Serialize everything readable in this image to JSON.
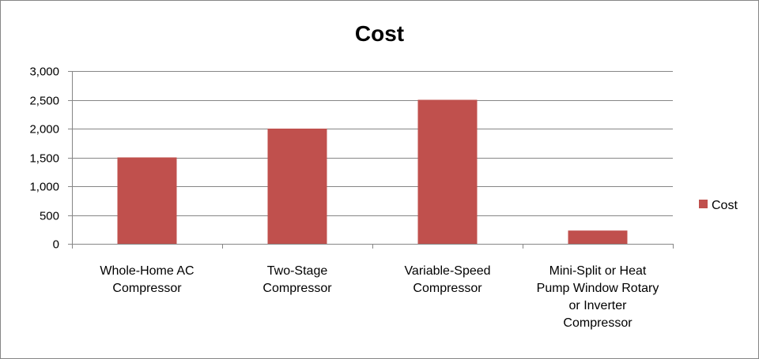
{
  "chart_data": {
    "type": "bar",
    "title": "Cost",
    "categories": [
      [
        "Whole-Home AC",
        "Compressor"
      ],
      [
        "Two-Stage",
        "Compressor"
      ],
      [
        "Variable-Speed",
        "Compressor"
      ],
      [
        "Mini-Split or Heat",
        "Pump Window Rotary",
        "or Inverter",
        "Compressor"
      ]
    ],
    "series": [
      {
        "name": "Cost",
        "values": [
          1500,
          2000,
          2500,
          230
        ]
      }
    ],
    "yticks": [
      "0",
      "500",
      "1,000",
      "1,500",
      "2,000",
      "2,500",
      "3,000"
    ],
    "ylim": [
      0,
      3000
    ],
    "grid": true,
    "legend_position": "right",
    "colors": {
      "bar": "#C0504D",
      "grid": "#868686",
      "axis": "#868686"
    }
  }
}
